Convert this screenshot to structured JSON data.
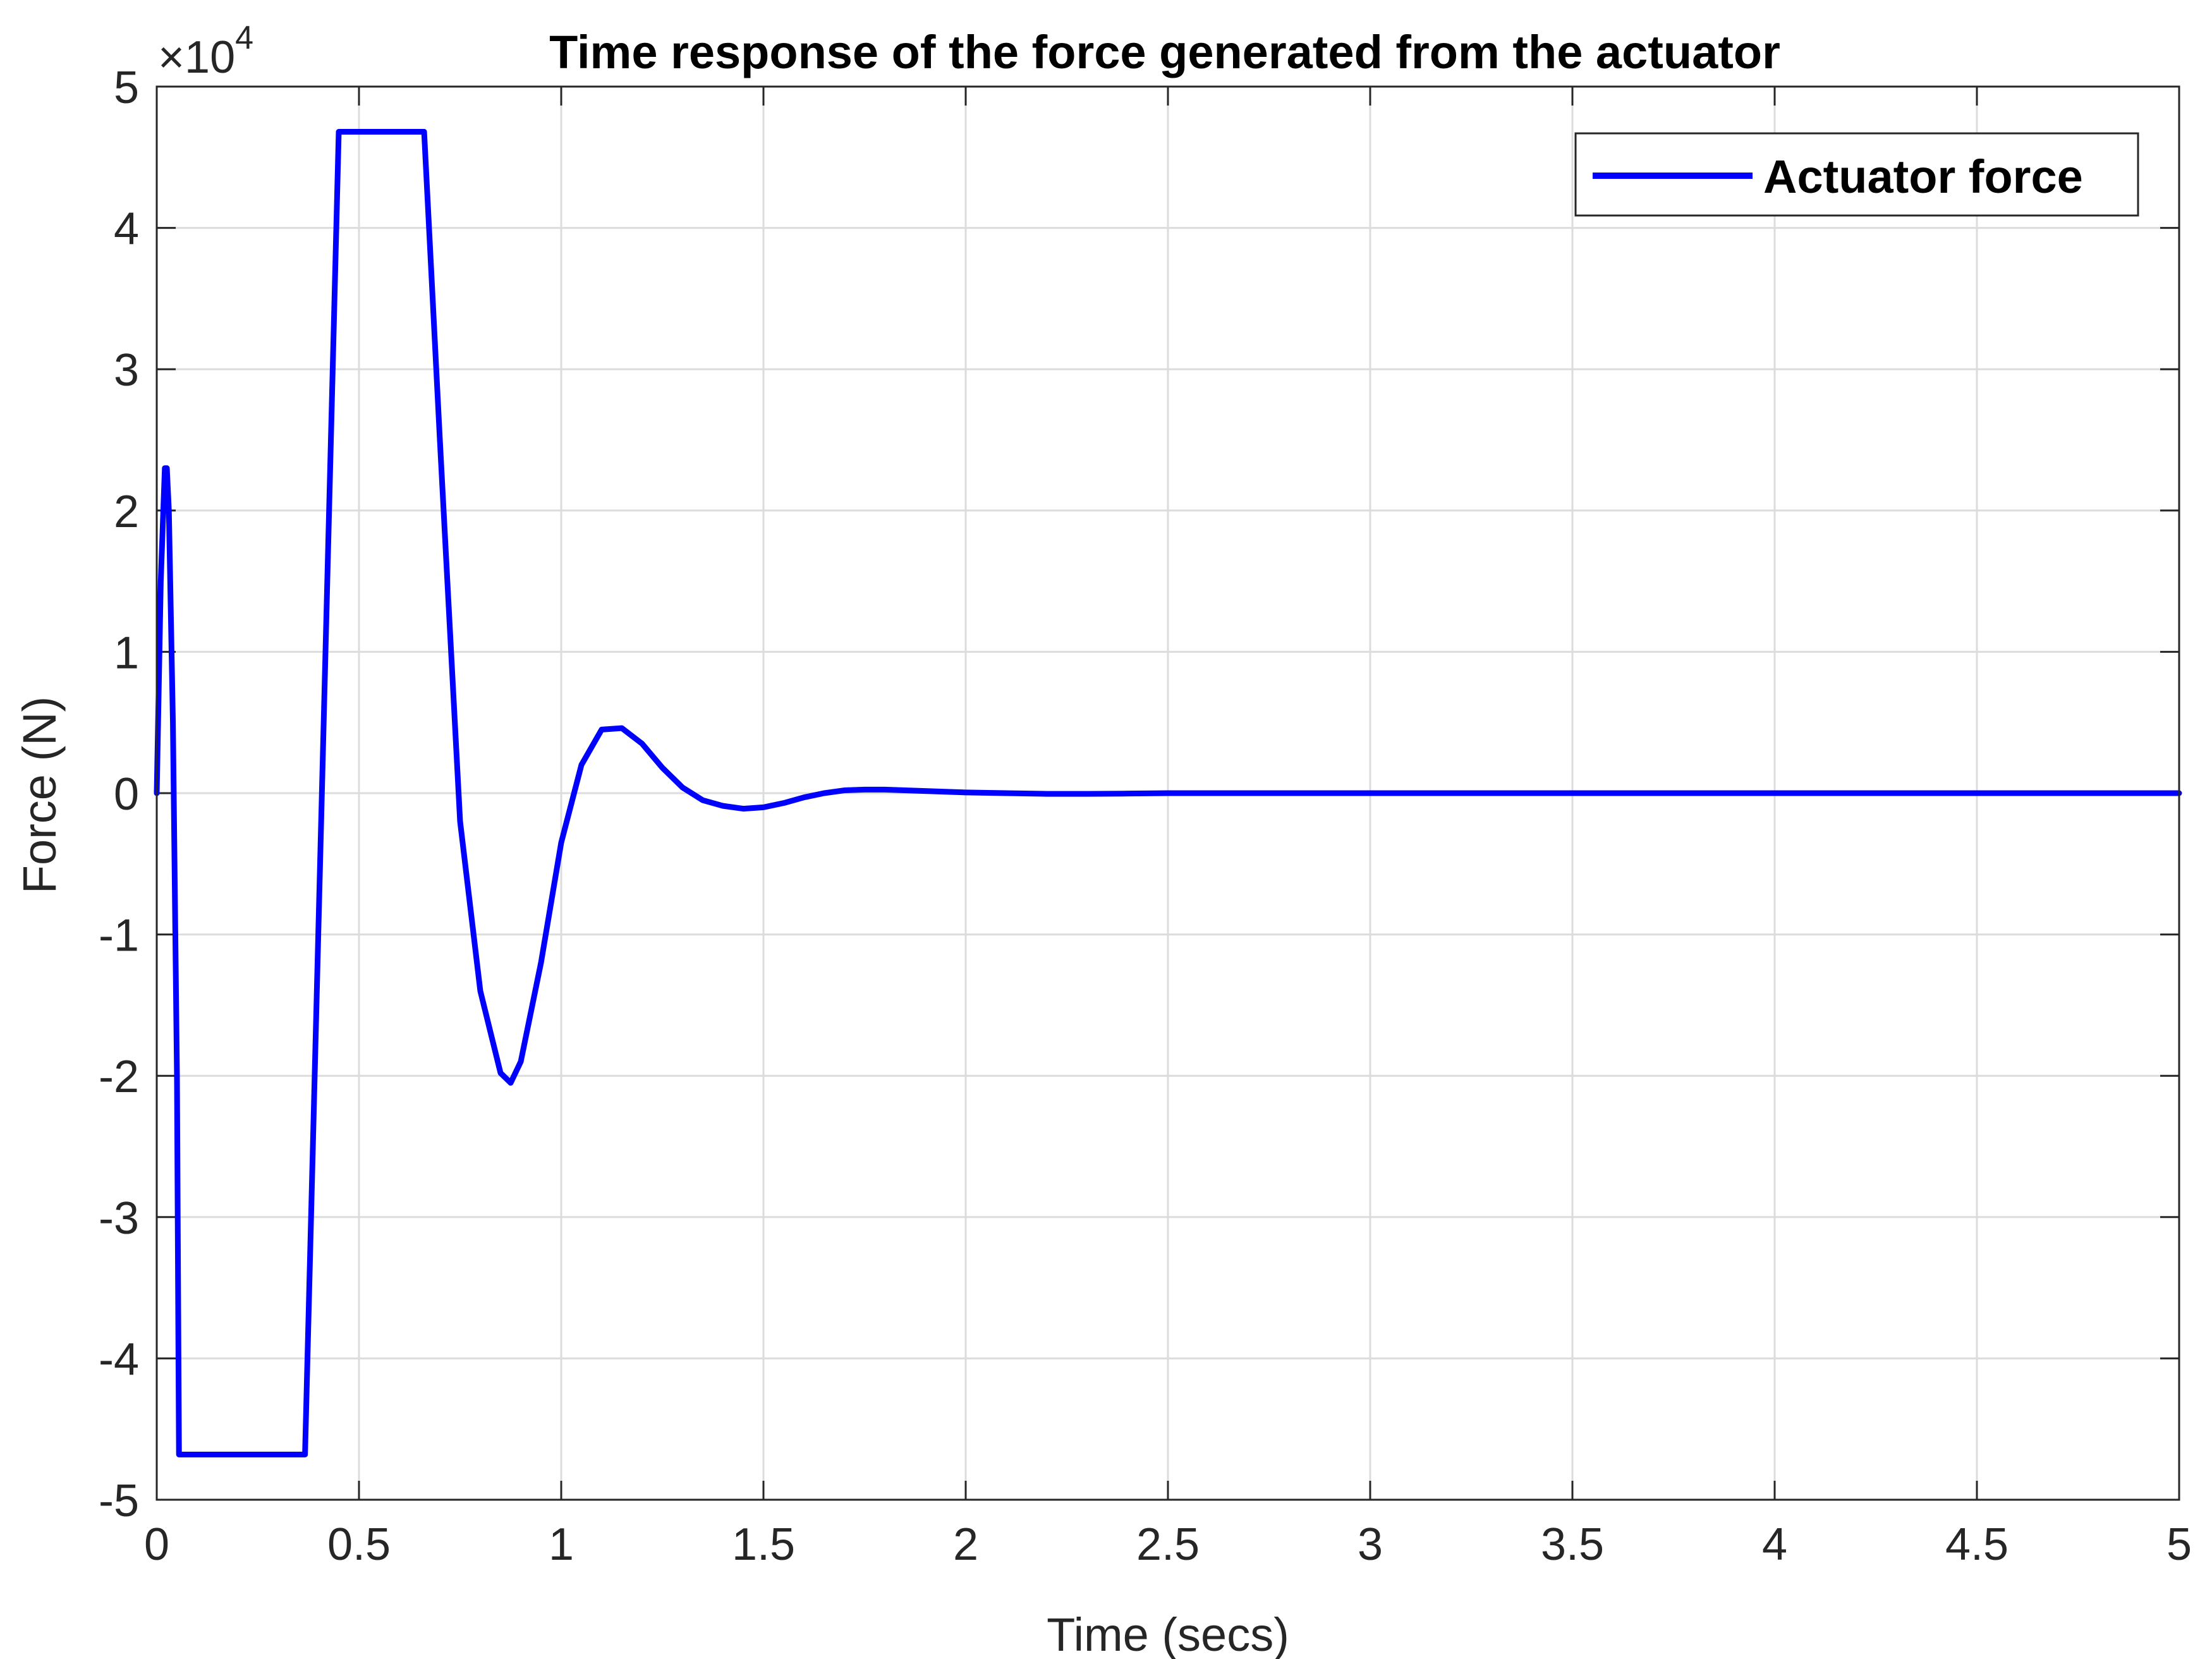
{
  "chart_data": {
    "type": "line",
    "title": "Time response of the force generated from the actuator",
    "xlabel": "Time (secs)",
    "ylabel": "Force (N)",
    "xlim": [
      0,
      5
    ],
    "ylim": [
      -50000,
      50000
    ],
    "x_ticks": [
      "0",
      "0.5",
      "1",
      "1.5",
      "2",
      "2.5",
      "3",
      "3.5",
      "4",
      "4.5",
      "5"
    ],
    "y_ticks": [
      "-5",
      "-4",
      "-3",
      "-2",
      "-1",
      "0",
      "1",
      "2",
      "3",
      "4",
      "5"
    ],
    "y_exponent": {
      "base": "×10",
      "power": "4"
    },
    "grid": true,
    "legend_position": "top-right",
    "series": [
      {
        "name": "Actuator force",
        "color": "#0000ff",
        "x": [
          0,
          0.01,
          0.02,
          0.025,
          0.03,
          0.04,
          0.05,
          0.055,
          0.3666,
          0.45,
          0.4555,
          0.6611,
          0.7,
          0.75,
          0.8,
          0.85,
          0.875,
          0.9,
          0.95,
          1.0,
          1.05,
          1.1,
          1.15,
          1.2,
          1.25,
          1.3,
          1.35,
          1.4,
          1.45,
          1.5,
          1.55,
          1.6,
          1.65,
          1.7,
          1.75,
          1.8,
          1.85,
          1.9,
          1.95,
          2.0,
          2.1,
          2.2,
          2.3,
          2.4,
          2.5,
          2.6,
          2.8,
          3.0,
          3.5,
          4.0,
          4.5,
          5.0
        ],
        "y": [
          0,
          15000,
          23000,
          23000,
          20000,
          5000,
          -20000,
          -46800,
          -46800,
          46800,
          46800,
          46800,
          25000,
          -2000,
          -14000,
          -19800,
          -20500,
          -19000,
          -12000,
          -3500,
          2000,
          4500,
          4600,
          3500,
          1800,
          400,
          -500,
          -900,
          -1100,
          -1000,
          -700,
          -300,
          0,
          200,
          250,
          250,
          200,
          150,
          100,
          50,
          0,
          -50,
          -50,
          -30,
          0,
          0,
          0,
          0,
          0,
          0,
          0,
          0
        ]
      }
    ]
  }
}
